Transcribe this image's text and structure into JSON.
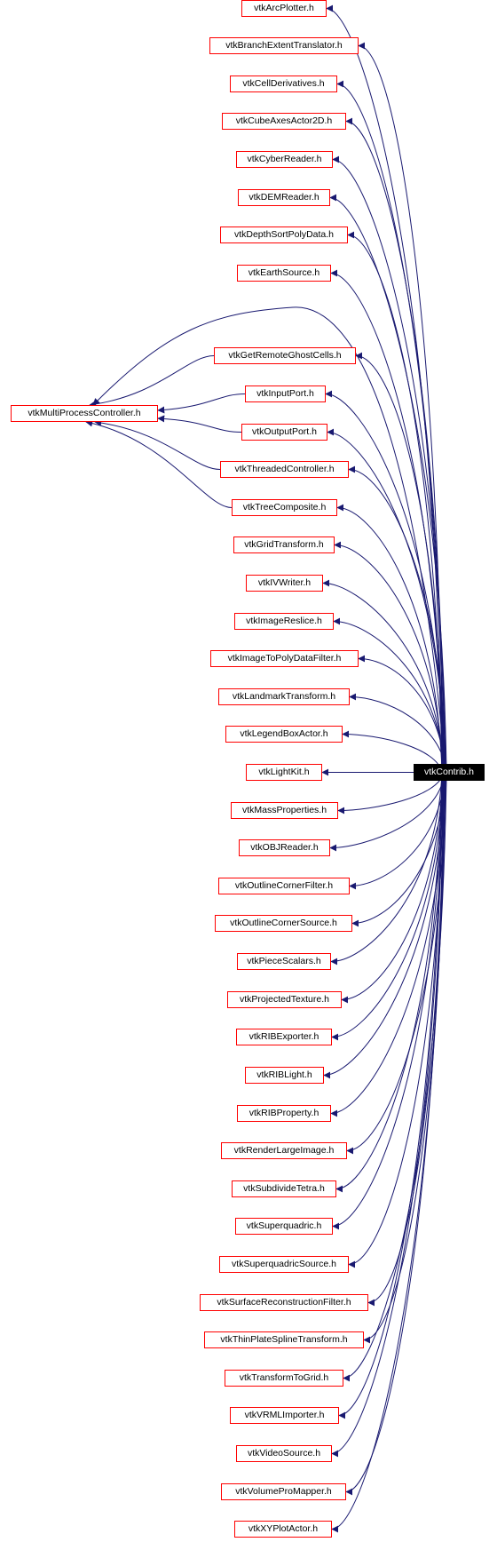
{
  "colors": {
    "edge": "#191970",
    "node_border": "#ff0000",
    "root_fill": "#000000",
    "root_text": "#ffffff",
    "background": "#ffffff"
  },
  "root": {
    "label": "vtkContrib.h"
  },
  "controller": {
    "label": "vtkMultiProcessController.h"
  },
  "includers": [
    {
      "label": "vtkArcPlotter.h"
    },
    {
      "label": "vtkBranchExtentTranslator.h"
    },
    {
      "label": "vtkCellDerivatives.h"
    },
    {
      "label": "vtkCubeAxesActor2D.h"
    },
    {
      "label": "vtkCyberReader.h"
    },
    {
      "label": "vtkDEMReader.h"
    },
    {
      "label": "vtkDepthSortPolyData.h"
    },
    {
      "label": "vtkEarthSource.h"
    },
    {
      "label": "vtkGetRemoteGhostCells.h"
    },
    {
      "label": "vtkInputPort.h"
    },
    {
      "label": "vtkOutputPort.h"
    },
    {
      "label": "vtkThreadedController.h"
    },
    {
      "label": "vtkTreeComposite.h"
    },
    {
      "label": "vtkGridTransform.h"
    },
    {
      "label": "vtkIVWriter.h"
    },
    {
      "label": "vtkImageReslice.h"
    },
    {
      "label": "vtkImageToPolyDataFilter.h"
    },
    {
      "label": "vtkLandmarkTransform.h"
    },
    {
      "label": "vtkLegendBoxActor.h"
    },
    {
      "label": "vtkLightKit.h"
    },
    {
      "label": "vtkMassProperties.h"
    },
    {
      "label": "vtkOBJReader.h"
    },
    {
      "label": "vtkOutlineCornerFilter.h"
    },
    {
      "label": "vtkOutlineCornerSource.h"
    },
    {
      "label": "vtkPieceScalars.h"
    },
    {
      "label": "vtkProjectedTexture.h"
    },
    {
      "label": "vtkRIBExporter.h"
    },
    {
      "label": "vtkRIBLight.h"
    },
    {
      "label": "vtkRIBProperty.h"
    },
    {
      "label": "vtkRenderLargeImage.h"
    },
    {
      "label": "vtkSubdivideTetra.h"
    },
    {
      "label": "vtkSuperquadric.h"
    },
    {
      "label": "vtkSuperquadricSource.h"
    },
    {
      "label": "vtkSurfaceReconstructionFilter.h"
    },
    {
      "label": "vtkThinPlateSplineTransform.h"
    },
    {
      "label": "vtkTransformToGrid.h"
    },
    {
      "label": "vtkVRMLImporter.h"
    },
    {
      "label": "vtkVideoSource.h"
    },
    {
      "label": "vtkVolumeProMapper.h"
    },
    {
      "label": "vtkXYPlotActor.h"
    }
  ]
}
